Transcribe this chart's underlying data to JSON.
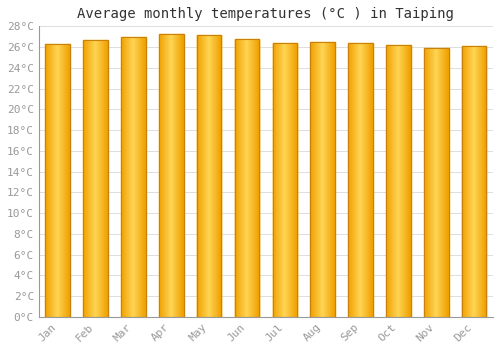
{
  "title": "Average monthly temperatures (°C ) in Taiping",
  "months": [
    "Jan",
    "Feb",
    "Mar",
    "Apr",
    "May",
    "Jun",
    "Jul",
    "Aug",
    "Sep",
    "Oct",
    "Nov",
    "Dec"
  ],
  "values": [
    26.3,
    26.7,
    27.0,
    27.3,
    27.2,
    26.8,
    26.4,
    26.5,
    26.4,
    26.2,
    25.9,
    26.1
  ],
  "bar_color_center": "#FFD555",
  "bar_color_edge": "#F0A000",
  "bar_edge_color": "#C8820A",
  "background_color": "#FFFFFF",
  "plot_bg_color": "#FFFFFF",
  "grid_color": "#DDDDDD",
  "ylim": [
    0,
    28
  ],
  "ytick_step": 2,
  "title_fontsize": 10,
  "tick_fontsize": 8,
  "tick_color": "#999999",
  "tick_font": "monospace"
}
